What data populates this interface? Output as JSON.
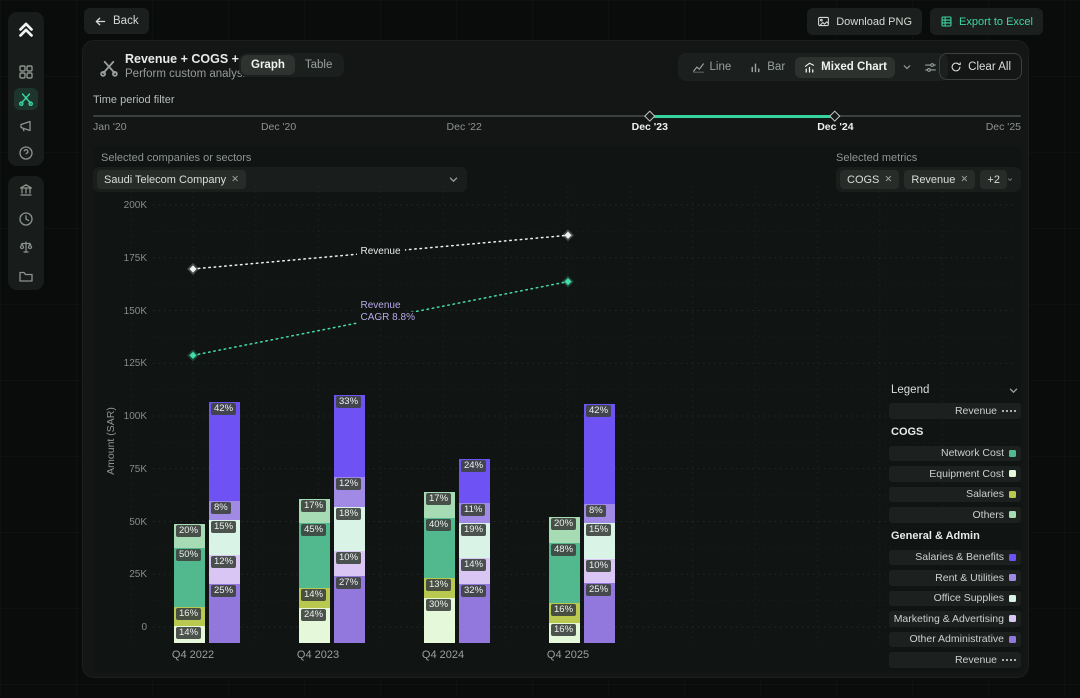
{
  "topbar": {
    "back": "Back",
    "download_png": "Download PNG",
    "export_excel": "Export to Excel"
  },
  "sidebar": {
    "icons": [
      "logo",
      "dashboard",
      "custom-analysis",
      "announcements",
      "help",
      "bank",
      "clock",
      "scales",
      "folder"
    ],
    "active": "custom-analysis"
  },
  "panel": {
    "title": "Revenue + COGS +...",
    "subtitle": "Perform custom analysis",
    "view_tabs": {
      "options": [
        "Graph",
        "Table"
      ],
      "active": "Graph"
    },
    "chart_type": {
      "options": [
        "Line",
        "Bar",
        "Mixed Chart"
      ],
      "selected": "Mixed Chart"
    },
    "clear_all": "Clear All"
  },
  "time_filter": {
    "label": "Time period filter",
    "ticks": [
      "Jan '20",
      "Dec '20",
      "Dec '22",
      "Dec '23",
      "Dec '24",
      "Dec '25"
    ],
    "selected_start": "Dec '23",
    "selected_end": "Dec '24"
  },
  "companies": {
    "label": "Selected companies or sectors",
    "chips": [
      "Saudi Telecom Company"
    ]
  },
  "metrics": {
    "label": "Selected metrics",
    "chips": [
      "COGS",
      "Revenue"
    ],
    "overflow": "+2"
  },
  "chart_data": {
    "type": "mixed",
    "ylabel": "Amount (SAR)",
    "y_ticks": [
      "200K",
      "175K",
      "150K",
      "125K",
      "100K",
      "75K",
      "50K",
      "25K",
      "0"
    ],
    "ylim_sar_k": [
      0,
      200
    ],
    "categories": [
      "Q4 2022",
      "Q4 2023",
      "Q4 2024",
      "Q4 2025"
    ],
    "grid": true,
    "legend_position": "right",
    "bar_stacks": [
      {
        "id": "cogs",
        "group": "COGS",
        "segments_bottom_to_top": [
          "Equipment Cost",
          "Salaries",
          "Network Cost",
          "Others"
        ],
        "colors": [
          "#e6f8da",
          "#b9c84f",
          "#52b98f",
          "#a7dbb4"
        ],
        "totals_sar_k": [
          49,
          61,
          64,
          52
        ],
        "percents": [
          [
            14,
            16,
            50,
            20
          ],
          [
            24,
            14,
            45,
            17
          ],
          [
            30,
            13,
            40,
            17
          ],
          [
            16,
            16,
            48,
            20
          ]
        ]
      },
      {
        "id": "general_admin",
        "group": "General & Admin",
        "segments_bottom_to_top": [
          "Other Administrative",
          "Marketing & Advertising",
          "Office Supplies",
          "Rent & Utilities",
          "Salaries & Benefits"
        ],
        "colors": [
          "#9278dc",
          "#d9c6f5",
          "#d9f4e7",
          "#a18ae6",
          "#6f52f4"
        ],
        "totals_sar_k": [
          107,
          110,
          80,
          106
        ],
        "percents": [
          [
            25,
            12,
            15,
            8,
            42
          ],
          [
            27,
            10,
            18,
            12,
            33
          ],
          [
            32,
            14,
            19,
            11,
            24
          ],
          [
            25,
            10,
            15,
            8,
            42
          ]
        ]
      }
    ],
    "line_series": [
      {
        "name": "Revenue",
        "style": "dotted",
        "color": "#eef1ee",
        "label_lines": [
          "Revenue"
        ],
        "label_color": "#e9ebe9",
        "points": [
          {
            "x": "Q4 2022",
            "y_sar_k": 170
          },
          {
            "x": "Q4 2025",
            "y_sar_k": 186
          }
        ]
      },
      {
        "name": "Revenue CAGR",
        "style": "dotted",
        "color": "#45dcab",
        "label_lines": [
          "Revenue",
          "CAGR 8.8%"
        ],
        "label_color": "#b7a9ea",
        "cagr": "8.8%",
        "points": [
          {
            "x": "Q4 2022",
            "y_sar_k": 129
          },
          {
            "x": "Q4 2025",
            "y_sar_k": 164
          }
        ]
      }
    ]
  },
  "legend": {
    "header": "Legend",
    "rows": [
      {
        "type": "line",
        "label": "Revenue"
      },
      {
        "type": "group",
        "label": "COGS"
      },
      {
        "type": "swatch",
        "label": "Network Cost",
        "color": "#52b98f"
      },
      {
        "type": "swatch",
        "label": "Equipment Cost",
        "color": "#e6f8da"
      },
      {
        "type": "swatch",
        "label": "Salaries",
        "color": "#b9c84f"
      },
      {
        "type": "swatch",
        "label": "Others",
        "color": "#a7dbb4"
      },
      {
        "type": "group",
        "label": "General & Admin"
      },
      {
        "type": "swatch",
        "label": "Salaries & Benefits",
        "color": "#6f52f4"
      },
      {
        "type": "swatch",
        "label": "Rent & Utilities",
        "color": "#a18ae6"
      },
      {
        "type": "swatch",
        "label": "Office Supplies",
        "color": "#d9f4e7"
      },
      {
        "type": "swatch",
        "label": "Marketing & Advertising",
        "color": "#d9c6f5"
      },
      {
        "type": "swatch",
        "label": "Other Administrative",
        "color": "#9278dc"
      },
      {
        "type": "line",
        "label": "Revenue"
      }
    ]
  },
  "colors": {
    "accent_teal": "#36d39f",
    "panel_bg": "#131615",
    "control_bg": "#1b1f1d",
    "text_primary": "#e9ebe9",
    "text_secondary": "#9aa09d"
  }
}
